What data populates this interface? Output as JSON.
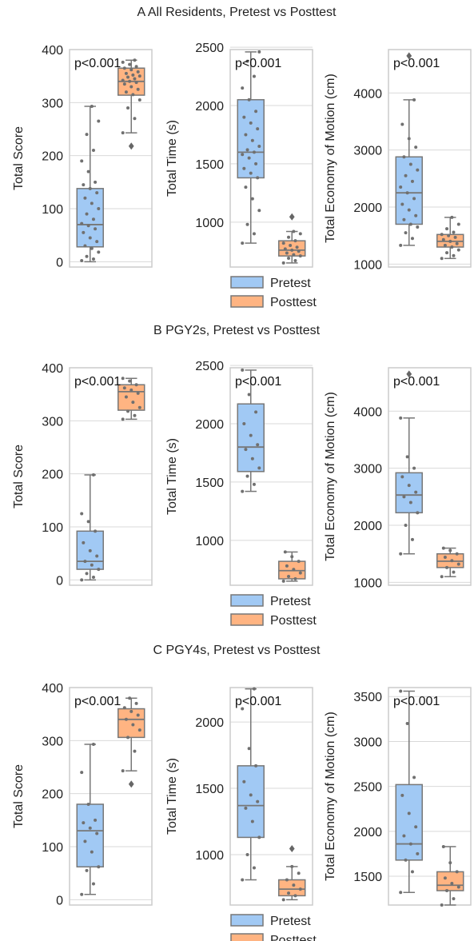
{
  "legend": {
    "entries": [
      {
        "label": "Pretest",
        "color": "#a1c9f4"
      },
      {
        "label": "Posttest",
        "color": "#ffb482"
      }
    ]
  },
  "colors": {
    "pretest": "#a1c9f4",
    "posttest": "#ffb482",
    "line": "#777777",
    "grid": "#d9d9d9",
    "frame": "#cccccc"
  },
  "chart_data": [
    {
      "type": "box",
      "panel": "A",
      "title": "A  All Residents, Pretest vs Posttest",
      "subplots": [
        {
          "ylabel": "Total Score",
          "ylim": [
            -10,
            400
          ],
          "yticks": [
            0,
            100,
            200,
            300,
            400
          ],
          "annotation": "p<0.001",
          "boxes": [
            {
              "name": "Pretest",
              "whislo": 0,
              "q1": 28,
              "med": 70,
              "q3": 138,
              "whishi": 293,
              "fliers": [],
              "points": [
                2,
                5,
                10,
                18,
                25,
                30,
                38,
                45,
                55,
                62,
                68,
                72,
                80,
                90,
                100,
                110,
                120,
                130,
                138,
                145,
                150,
                170,
                190,
                210,
                240,
                265,
                293
              ]
            },
            {
              "name": "Posttest",
              "whislo": 243,
              "q1": 314,
              "med": 340,
              "q3": 365,
              "whishi": 380,
              "fliers": [
                218
              ],
              "points": [
                243,
                270,
                290,
                305,
                315,
                320,
                325,
                330,
                335,
                338,
                340,
                342,
                345,
                348,
                350,
                352,
                355,
                358,
                362,
                365,
                368,
                372,
                376,
                380
              ]
            }
          ]
        },
        {
          "ylabel": "Total Time (s)",
          "ylim": [
            600,
            2480
          ],
          "yticks": [
            1000,
            1500,
            2000,
            2500
          ],
          "annotation": "p<0.001",
          "boxes": [
            {
              "name": "Pretest",
              "whislo": 820,
              "q1": 1380,
              "med": 1600,
              "q3": 2050,
              "whishi": 2460,
              "fliers": [],
              "points": [
                820,
                900,
                980,
                1100,
                1200,
                1300,
                1380,
                1420,
                1460,
                1500,
                1550,
                1580,
                1600,
                1620,
                1650,
                1700,
                1750,
                1800,
                1850,
                1900,
                1950,
                2050,
                2150,
                2250,
                2380,
                2460
              ]
            },
            {
              "name": "Posttest",
              "whislo": 650,
              "q1": 710,
              "med": 760,
              "q3": 840,
              "whishi": 920,
              "fliers": [
                1045
              ],
              "points": [
                650,
                670,
                690,
                710,
                720,
                735,
                750,
                760,
                770,
                785,
                800,
                820,
                840,
                870,
                900,
                920
              ]
            }
          ]
        },
        {
          "ylabel": "Total Economy of Motion (cm)",
          "ylim": [
            950,
            4800
          ],
          "yticks": [
            1000,
            2000,
            3000,
            4000
          ],
          "annotation": "p<0.001",
          "boxes": [
            {
              "name": "Pretest",
              "whislo": 1330,
              "q1": 1700,
              "med": 2250,
              "q3": 2880,
              "whishi": 3880,
              "fliers": [
                4650
              ],
              "points": [
                1330,
                1450,
                1550,
                1650,
                1700,
                1780,
                1850,
                1950,
                2050,
                2150,
                2250,
                2350,
                2450,
                2550,
                2650,
                2750,
                2880,
                3050,
                3200,
                3450,
                3880
              ]
            },
            {
              "name": "Posttest",
              "whislo": 1100,
              "q1": 1300,
              "med": 1400,
              "q3": 1520,
              "whishi": 1820,
              "fliers": [],
              "points": [
                1100,
                1150,
                1200,
                1250,
                1300,
                1330,
                1360,
                1400,
                1430,
                1470,
                1500,
                1520,
                1560,
                1620,
                1700,
                1820
              ]
            }
          ]
        }
      ]
    },
    {
      "type": "box",
      "panel": "B",
      "title": "B  PGY2s, Pretest vs Posttest",
      "subplots": [
        {
          "ylabel": "Total Score",
          "ylim": [
            -10,
            400
          ],
          "yticks": [
            0,
            100,
            200,
            300,
            400
          ],
          "annotation": "p<0.001",
          "boxes": [
            {
              "name": "Pretest",
              "whislo": 0,
              "q1": 20,
              "med": 35,
              "q3": 92,
              "whishi": 198,
              "fliers": [],
              "points": [
                0,
                5,
                12,
                20,
                28,
                35,
                45,
                55,
                70,
                92,
                110,
                125,
                198
              ]
            },
            {
              "name": "Posttest",
              "whislo": 303,
              "q1": 320,
              "med": 355,
              "q3": 368,
              "whishi": 380,
              "fliers": [],
              "points": [
                303,
                310,
                318,
                325,
                335,
                345,
                352,
                358,
                362,
                368,
                375,
                380
              ]
            }
          ]
        },
        {
          "ylabel": "Total Time (s)",
          "ylim": [
            600,
            2480
          ],
          "yticks": [
            1000,
            1500,
            2000,
            2500
          ],
          "annotation": "p<0.001",
          "boxes": [
            {
              "name": "Pretest",
              "whislo": 1420,
              "q1": 1590,
              "med": 1800,
              "q3": 2170,
              "whishi": 2460,
              "fliers": [],
              "points": [
                1420,
                1480,
                1550,
                1620,
                1700,
                1780,
                1820,
                1900,
                2000,
                2100,
                2250,
                2460
              ]
            },
            {
              "name": "Posttest",
              "whislo": 650,
              "q1": 670,
              "med": 740,
              "q3": 820,
              "whishi": 900,
              "fliers": [],
              "points": [
                650,
                670,
                690,
                720,
                750,
                780,
                820,
                860,
                900
              ]
            }
          ]
        },
        {
          "ylabel": "Total Economy of Motion (cm)",
          "ylim": [
            950,
            4800
          ],
          "yticks": [
            1000,
            2000,
            3000,
            4000
          ],
          "annotation": "p<0.001",
          "boxes": [
            {
              "name": "Pretest",
              "whislo": 1500,
              "q1": 2220,
              "med": 2530,
              "q3": 2920,
              "whishi": 3880,
              "fliers": [
                4650
              ],
              "points": [
                1500,
                1750,
                2000,
                2220,
                2400,
                2500,
                2580,
                2700,
                2850,
                3000,
                3200,
                3880
              ]
            },
            {
              "name": "Posttest",
              "whislo": 1100,
              "q1": 1260,
              "med": 1370,
              "q3": 1500,
              "whishi": 1600,
              "fliers": [],
              "points": [
                1100,
                1180,
                1260,
                1320,
                1380,
                1440,
                1500,
                1560,
                1600
              ]
            }
          ]
        }
      ]
    },
    {
      "type": "box",
      "panel": "C",
      "title": "C  PGY4s, Pretest vs Posttest",
      "subplots": [
        {
          "ylabel": "Total Score",
          "ylim": [
            -10,
            400
          ],
          "yticks": [
            0,
            100,
            200,
            300,
            400
          ],
          "annotation": "p<0.001",
          "boxes": [
            {
              "name": "Pretest",
              "whislo": 10,
              "q1": 62,
              "med": 130,
              "q3": 180,
              "whishi": 293,
              "fliers": [],
              "points": [
                10,
                30,
                55,
                62,
                90,
                110,
                125,
                135,
                145,
                150,
                180,
                240,
                293
              ]
            },
            {
              "name": "Posttest",
              "whislo": 243,
              "q1": 306,
              "med": 340,
              "q3": 360,
              "whishi": 380,
              "fliers": [
                218
              ],
              "points": [
                243,
                280,
                306,
                320,
                330,
                340,
                348,
                355,
                362,
                370,
                380
              ]
            }
          ]
        },
        {
          "ylabel": "Total Time (s)",
          "ylim": [
            620,
            2260
          ],
          "yticks": [
            1000,
            1500,
            2000
          ],
          "annotation": "p<0.001",
          "boxes": [
            {
              "name": "Pretest",
              "whislo": 810,
              "q1": 1130,
              "med": 1370,
              "q3": 1670,
              "whishi": 2250,
              "fliers": [],
              "points": [
                810,
                900,
                1000,
                1130,
                1250,
                1350,
                1400,
                1450,
                1550,
                1670,
                1800,
                2100,
                2250
              ]
            },
            {
              "name": "Posttest",
              "whislo": 660,
              "q1": 690,
              "med": 740,
              "q3": 810,
              "whishi": 910,
              "fliers": [
                1045
              ],
              "points": [
                660,
                690,
                710,
                740,
                770,
                810,
                860,
                910
              ]
            }
          ]
        },
        {
          "ylabel": "Total Economy of Motion (cm)",
          "ylim": [
            1180,
            3600
          ],
          "yticks": [
            1500,
            2000,
            2500,
            3000,
            3500
          ],
          "annotation": "p<0.001",
          "boxes": [
            {
              "name": "Pretest",
              "whislo": 1320,
              "q1": 1680,
              "med": 1860,
              "q3": 2520,
              "whishi": 3560,
              "fliers": [],
              "points": [
                1320,
                1550,
                1680,
                1750,
                1860,
                1950,
                2050,
                2200,
                2400,
                2600,
                3200,
                3560
              ]
            },
            {
              "name": "Posttest",
              "whislo": 1180,
              "q1": 1340,
              "med": 1400,
              "q3": 1550,
              "whishi": 1830,
              "fliers": [],
              "points": [
                1180,
                1250,
                1340,
                1380,
                1420,
                1480,
                1550,
                1650,
                1830
              ]
            }
          ]
        }
      ]
    }
  ]
}
